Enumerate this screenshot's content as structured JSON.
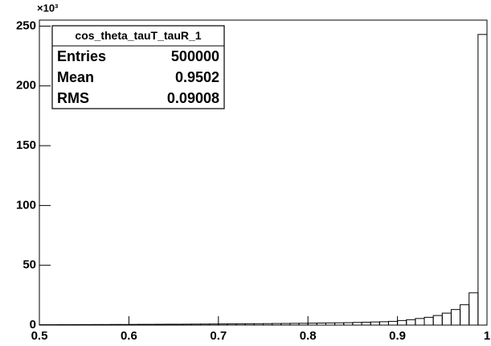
{
  "chart_data": {
    "type": "histogram",
    "title": "cos_theta_tauT_tauR_1",
    "y_multiplier": "×10³",
    "bins": [
      0.5,
      0.51,
      0.52,
      0.53,
      0.54,
      0.55,
      0.56,
      0.57,
      0.58,
      0.59,
      0.6,
      0.61,
      0.62,
      0.63,
      0.64,
      0.65,
      0.66,
      0.67,
      0.68,
      0.69,
      0.7,
      0.71,
      0.72,
      0.73,
      0.74,
      0.75,
      0.76,
      0.77,
      0.78,
      0.79,
      0.8,
      0.81,
      0.82,
      0.83,
      0.84,
      0.85,
      0.86,
      0.87,
      0.88,
      0.89,
      0.9,
      0.91,
      0.92,
      0.93,
      0.94,
      0.95,
      0.96,
      0.97,
      0.98,
      0.99,
      1
    ],
    "values": [
      0.3,
      0.3,
      0.35,
      0.35,
      0.4,
      0.4,
      0.45,
      0.45,
      0.5,
      0.5,
      0.55,
      0.6,
      0.6,
      0.65,
      0.7,
      0.7,
      0.75,
      0.8,
      0.85,
      0.9,
      0.95,
      1.0,
      1.05,
      1.1,
      1.15,
      1.2,
      1.3,
      1.35,
      1.45,
      1.5,
      1.6,
      1.7,
      1.8,
      1.9,
      2.0,
      2.2,
      2.4,
      2.6,
      2.8,
      3.1,
      3.8,
      4.5,
      5.5,
      6.5,
      8,
      10,
      13,
      17,
      27,
      243
    ],
    "color": "#000000",
    "xlim": [
      0.5,
      1
    ],
    "xticks": [
      0.5,
      0.6,
      0.7,
      0.8,
      0.9,
      1
    ],
    "ylim": [
      0,
      255
    ],
    "yticks": [
      0,
      50,
      100,
      150,
      200,
      250
    ],
    "stats": {
      "title": "cos_theta_tauT_tauR_1",
      "rows": [
        {
          "label": "Entries",
          "value": 500000
        },
        {
          "label": "Mean",
          "value": 0.9502
        },
        {
          "label": "RMS",
          "value": 0.09008
        }
      ]
    }
  }
}
